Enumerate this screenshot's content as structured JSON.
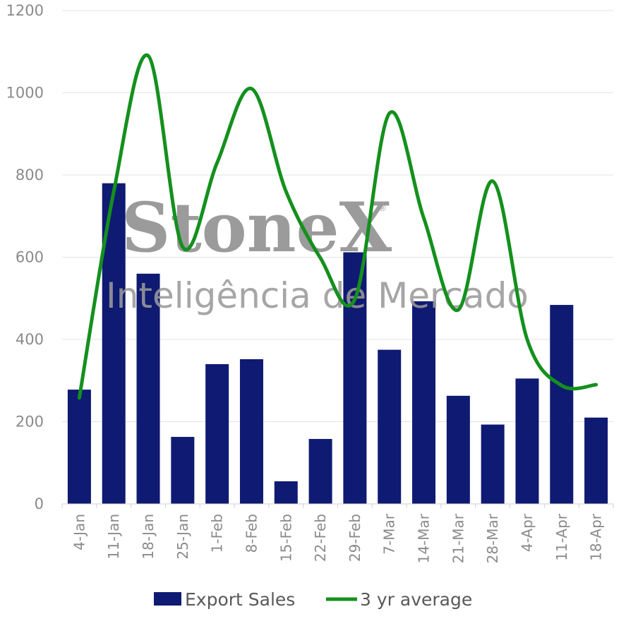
{
  "chart_data": {
    "type": "bar",
    "categories": [
      "4-Jan",
      "11-Jan",
      "18-Jan",
      "25-Jan",
      "1-Feb",
      "8-Feb",
      "15-Feb",
      "22-Feb",
      "29-Feb",
      "7-Mar",
      "14-Mar",
      "21-Mar",
      "28-Mar",
      "4-Apr",
      "11-Apr",
      "18-Apr"
    ],
    "series": [
      {
        "name": "Export Sales",
        "type": "bar",
        "color": "#0f1a72",
        "values": [
          278,
          780,
          560,
          163,
          340,
          352,
          55,
          158,
          612,
          375,
          493,
          263,
          193,
          305,
          484,
          210
        ]
      },
      {
        "name": "3 yr average",
        "type": "line",
        "color": "#14901d",
        "values": [
          258,
          760,
          1090,
          625,
          830,
          1010,
          760,
          598,
          498,
          950,
          695,
          472,
          785,
          400,
          288,
          290
        ]
      }
    ],
    "ylim": [
      0,
      1200
    ],
    "yticks": [
      "0",
      "200",
      "400",
      "600",
      "800",
      "1000",
      "1200"
    ],
    "grid": true,
    "legend_position": "bottom"
  },
  "watermark": {
    "brand": "StoneX",
    "registered": "®",
    "tagline": "Inteligência de Mercado"
  }
}
